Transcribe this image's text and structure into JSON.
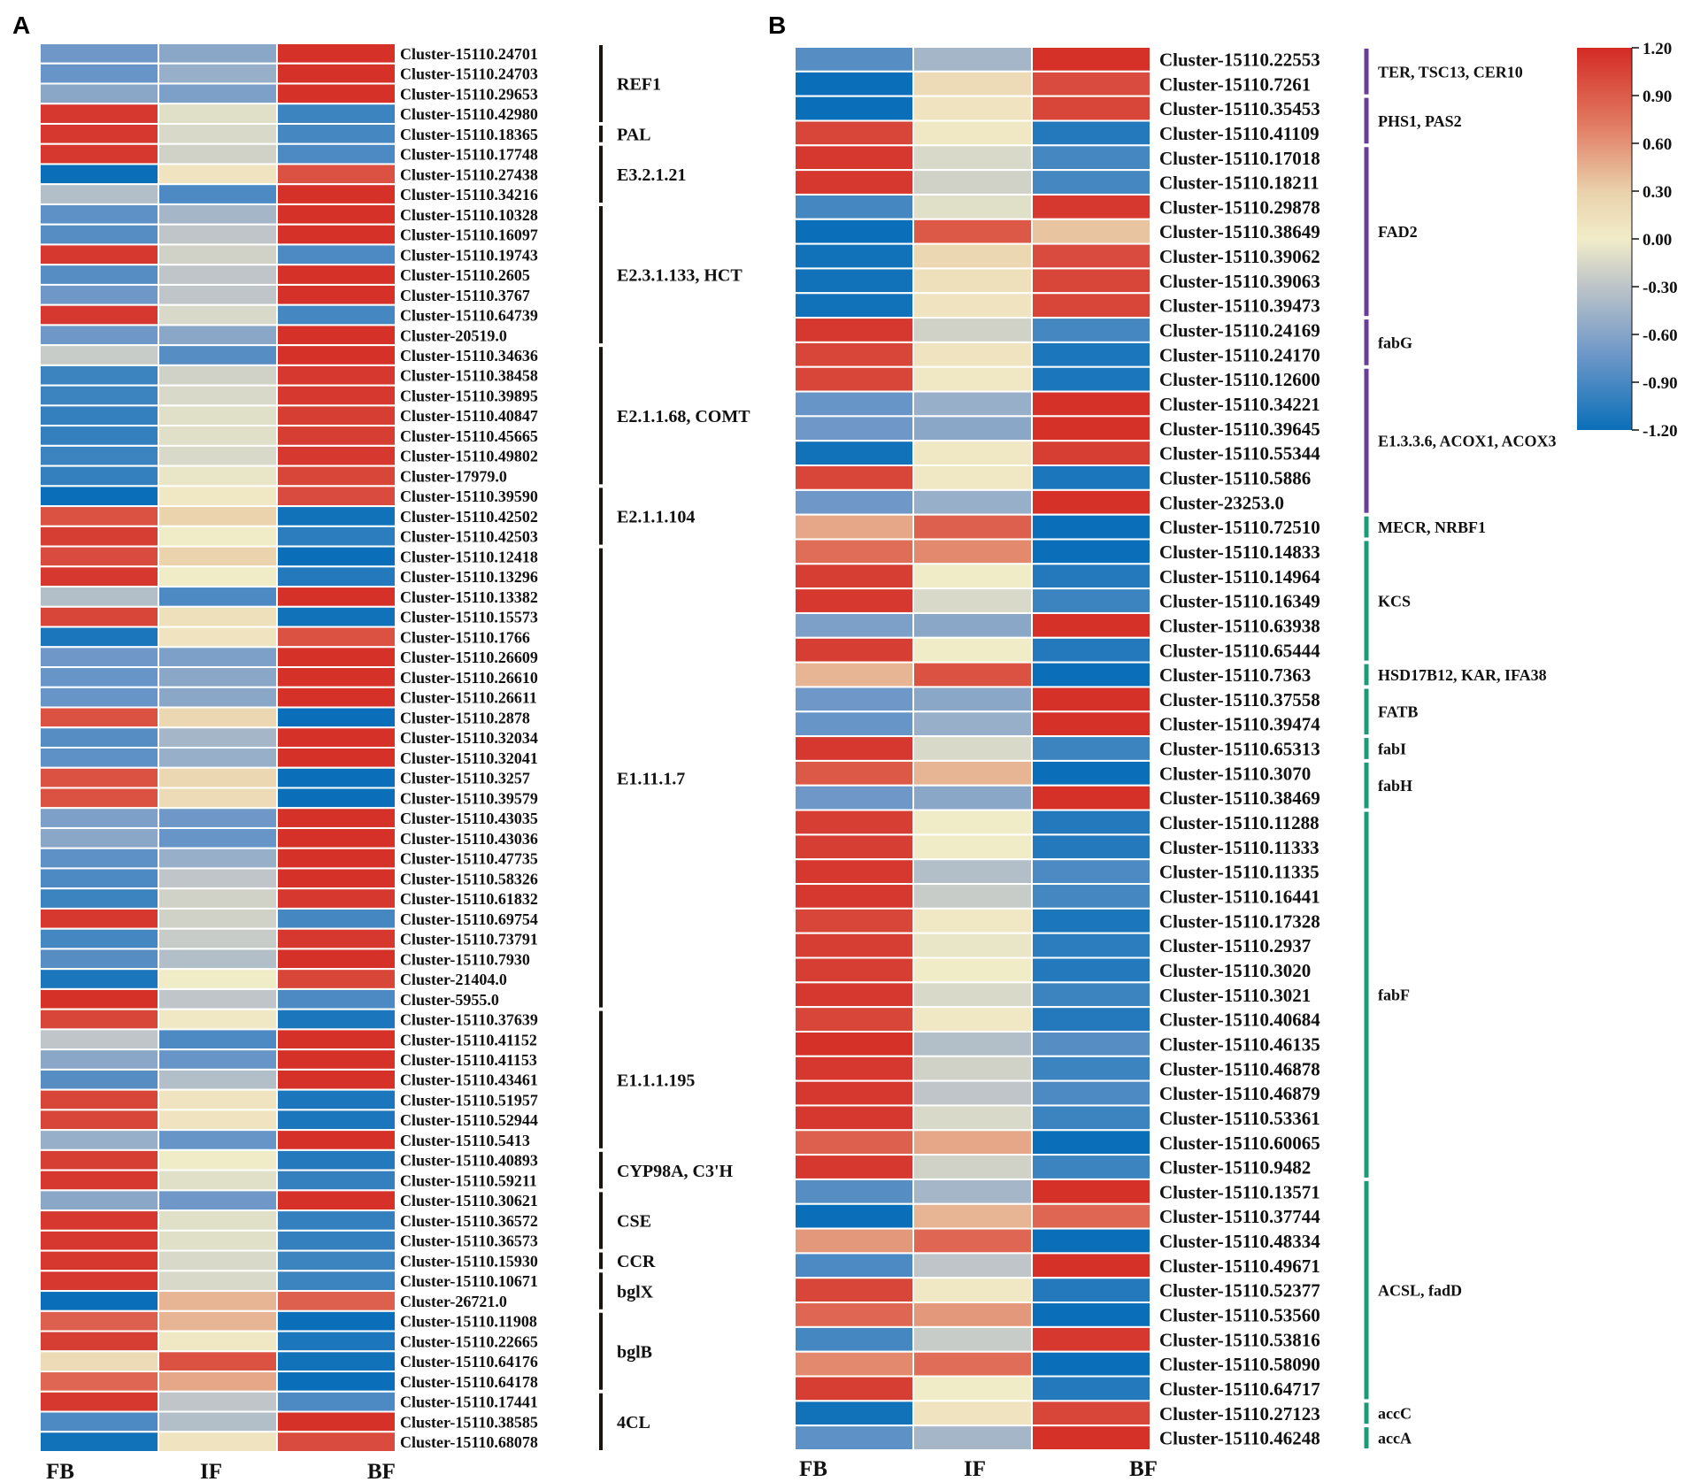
{
  "chart_data": [
    {
      "type": "heatmap",
      "panel": "A",
      "columns": [
        "FB",
        "IF",
        "BF"
      ],
      "rows": [
        "Cluster-15110.24701",
        "Cluster-15110.24703",
        "Cluster-15110.29653",
        "Cluster-15110.42980",
        "Cluster-15110.18365",
        "Cluster-15110.17748",
        "Cluster-15110.27438",
        "Cluster-15110.34216",
        "Cluster-15110.10328",
        "Cluster-15110.16097",
        "Cluster-15110.19743",
        "Cluster-15110.2605",
        "Cluster-15110.3767",
        "Cluster-15110.64739",
        "Cluster-20519.0",
        "Cluster-15110.34636",
        "Cluster-15110.38458",
        "Cluster-15110.39895",
        "Cluster-15110.40847",
        "Cluster-15110.45665",
        "Cluster-15110.49802",
        "Cluster-17979.0",
        "Cluster-15110.39590",
        "Cluster-15110.42502",
        "Cluster-15110.42503",
        "Cluster-15110.12418",
        "Cluster-15110.13296",
        "Cluster-15110.13382",
        "Cluster-15110.15573",
        "Cluster-15110.1766",
        "Cluster-15110.26609",
        "Cluster-15110.26610",
        "Cluster-15110.26611",
        "Cluster-15110.2878",
        "Cluster-15110.32034",
        "Cluster-15110.32041",
        "Cluster-15110.3257",
        "Cluster-15110.39579",
        "Cluster-15110.43035",
        "Cluster-15110.43036",
        "Cluster-15110.47735",
        "Cluster-15110.58326",
        "Cluster-15110.61832",
        "Cluster-15110.69754",
        "Cluster-15110.73791",
        "Cluster-15110.7930",
        "Cluster-21404.0",
        "Cluster-5955.0",
        "Cluster-15110.37639",
        "Cluster-15110.41152",
        "Cluster-15110.41153",
        "Cluster-15110.43461",
        "Cluster-15110.51957",
        "Cluster-15110.52944",
        "Cluster-15110.5413",
        "Cluster-15110.40893",
        "Cluster-15110.59211",
        "Cluster-15110.30621",
        "Cluster-15110.36572",
        "Cluster-15110.36573",
        "Cluster-15110.15930",
        "Cluster-15110.10671",
        "Cluster-26721.0",
        "Cluster-15110.11908",
        "Cluster-15110.22665",
        "Cluster-15110.64176",
        "Cluster-15110.64178",
        "Cluster-15110.17441",
        "Cluster-15110.38585",
        "Cluster-15110.68078"
      ],
      "values": [
        [
          -0.6,
          -0.5,
          1.15
        ],
        [
          -0.65,
          -0.45,
          1.15
        ],
        [
          -0.5,
          -0.55,
          1.15
        ],
        [
          1.1,
          -0.1,
          -0.9
        ],
        [
          1.1,
          -0.15,
          -0.85
        ],
        [
          1.1,
          -0.2,
          -0.8
        ],
        [
          -1.2,
          0.1,
          0.9
        ],
        [
          -0.35,
          -0.8,
          1.15
        ],
        [
          -0.7,
          -0.4,
          1.15
        ],
        [
          -0.75,
          -0.3,
          1.15
        ],
        [
          1.1,
          -0.2,
          -0.8
        ],
        [
          -0.75,
          -0.3,
          1.15
        ],
        [
          -0.6,
          -0.3,
          1.15
        ],
        [
          1.1,
          -0.15,
          -0.85
        ],
        [
          -0.6,
          -0.5,
          1.15
        ],
        [
          -0.25,
          -0.75,
          1.15
        ],
        [
          -0.9,
          -0.2,
          1.1
        ],
        [
          -0.9,
          -0.15,
          1.1
        ],
        [
          -0.95,
          -0.1,
          1.05
        ],
        [
          -0.95,
          -0.1,
          1.05
        ],
        [
          -0.9,
          -0.15,
          1.1
        ],
        [
          -0.95,
          -0.05,
          1.0
        ],
        [
          -1.2,
          0.05,
          0.95
        ],
        [
          0.9,
          0.3,
          -1.15
        ],
        [
          1.05,
          0.0,
          -1.0
        ],
        [
          0.95,
          0.3,
          -1.2
        ],
        [
          1.1,
          0.0,
          -1.05
        ],
        [
          -0.35,
          -0.8,
          1.15
        ],
        [
          1.0,
          0.15,
          -1.15
        ],
        [
          -1.1,
          0.1,
          0.9
        ],
        [
          -0.6,
          -0.55,
          1.15
        ],
        [
          -0.65,
          -0.5,
          1.15
        ],
        [
          -0.65,
          -0.5,
          1.15
        ],
        [
          0.9,
          0.25,
          -1.2
        ],
        [
          -0.75,
          -0.4,
          1.15
        ],
        [
          -0.7,
          -0.45,
          1.15
        ],
        [
          0.9,
          0.25,
          -1.2
        ],
        [
          0.9,
          0.2,
          -1.2
        ],
        [
          -0.55,
          -0.6,
          1.15
        ],
        [
          -0.5,
          -0.65,
          1.15
        ],
        [
          -0.7,
          -0.45,
          1.15
        ],
        [
          -0.8,
          -0.3,
          1.15
        ],
        [
          -0.9,
          -0.2,
          1.1
        ],
        [
          1.1,
          -0.2,
          -0.85
        ],
        [
          -0.85,
          -0.25,
          1.1
        ],
        [
          -0.75,
          -0.35,
          1.15
        ],
        [
          -1.1,
          0.0,
          1.0
        ],
        [
          1.15,
          -0.3,
          -0.8
        ],
        [
          1.0,
          0.05,
          -1.1
        ],
        [
          -0.3,
          -0.8,
          1.15
        ],
        [
          -0.5,
          -0.65,
          1.15
        ],
        [
          -0.75,
          -0.35,
          1.15
        ],
        [
          1.0,
          0.1,
          -1.1
        ],
        [
          1.0,
          0.1,
          -1.1
        ],
        [
          -0.45,
          -0.65,
          1.15
        ],
        [
          1.05,
          0.0,
          -1.05
        ],
        [
          1.1,
          -0.1,
          -0.95
        ],
        [
          -0.5,
          -0.6,
          1.15
        ],
        [
          1.1,
          -0.1,
          -0.95
        ],
        [
          1.1,
          -0.1,
          -0.95
        ],
        [
          1.1,
          -0.15,
          -0.9
        ],
        [
          1.1,
          -0.15,
          -0.9
        ],
        [
          -1.2,
          0.4,
          0.8
        ],
        [
          0.8,
          0.4,
          -1.2
        ],
        [
          1.05,
          0.05,
          -1.1
        ],
        [
          0.2,
          0.9,
          -1.15
        ],
        [
          0.75,
          0.45,
          -1.2
        ],
        [
          1.1,
          -0.3,
          -0.8
        ],
        [
          -0.8,
          -0.35,
          1.15
        ],
        [
          -1.15,
          0.1,
          0.95
        ]
      ],
      "groups": [
        {
          "label": "REF1",
          "start": 0,
          "end": 3
        },
        {
          "label": "PAL",
          "start": 4,
          "end": 4
        },
        {
          "label": "E3.2.1.21",
          "start": 5,
          "end": 7
        },
        {
          "label": "E2.3.1.133, HCT",
          "start": 8,
          "end": 14
        },
        {
          "label": "E2.1.1.68, COMT",
          "start": 15,
          "end": 21
        },
        {
          "label": "E2.1.1.104",
          "start": 22,
          "end": 24
        },
        {
          "label": "E1.11.1.7",
          "start": 25,
          "end": 47
        },
        {
          "label": "E1.1.1.195",
          "start": 48,
          "end": 54
        },
        {
          "label": "CYP98A, C3'H",
          "start": 55,
          "end": 56
        },
        {
          "label": "CSE",
          "start": 57,
          "end": 59
        },
        {
          "label": "CCR",
          "start": 60,
          "end": 60
        },
        {
          "label": "bglX",
          "start": 61,
          "end": 62
        },
        {
          "label": "bglB",
          "start": 63,
          "end": 66
        },
        {
          "label": "4CL",
          "start": 67,
          "end": 69
        }
      ],
      "group_color": "#1a1410"
    },
    {
      "type": "heatmap",
      "panel": "B",
      "columns": [
        "FB",
        "IF",
        "BF"
      ],
      "rows": [
        "Cluster-15110.22553",
        "Cluster-15110.7261",
        "Cluster-15110.35453",
        "Cluster-15110.41109",
        "Cluster-15110.17018",
        "Cluster-15110.18211",
        "Cluster-15110.29878",
        "Cluster-15110.38649",
        "Cluster-15110.39062",
        "Cluster-15110.39063",
        "Cluster-15110.39473",
        "Cluster-15110.24169",
        "Cluster-15110.24170",
        "Cluster-15110.12600",
        "Cluster-15110.34221",
        "Cluster-15110.39645",
        "Cluster-15110.55344",
        "Cluster-15110.5886",
        "Cluster-23253.0",
        "Cluster-15110.72510",
        "Cluster-15110.14833",
        "Cluster-15110.14964",
        "Cluster-15110.16349",
        "Cluster-15110.63938",
        "Cluster-15110.65444",
        "Cluster-15110.7363",
        "Cluster-15110.37558",
        "Cluster-15110.39474",
        "Cluster-15110.65313",
        "Cluster-15110.3070",
        "Cluster-15110.38469",
        "Cluster-15110.11288",
        "Cluster-15110.11333",
        "Cluster-15110.11335",
        "Cluster-15110.16441",
        "Cluster-15110.17328",
        "Cluster-15110.2937",
        "Cluster-15110.3020",
        "Cluster-15110.3021",
        "Cluster-15110.40684",
        "Cluster-15110.46135",
        "Cluster-15110.46878",
        "Cluster-15110.46879",
        "Cluster-15110.53361",
        "Cluster-15110.60065",
        "Cluster-15110.9482",
        "Cluster-15110.13571",
        "Cluster-15110.37744",
        "Cluster-15110.48334",
        "Cluster-15110.49671",
        "Cluster-15110.52377",
        "Cluster-15110.53560",
        "Cluster-15110.53816",
        "Cluster-15110.58090",
        "Cluster-15110.64717",
        "Cluster-15110.27123",
        "Cluster-15110.46248"
      ],
      "values": [
        [
          -0.75,
          -0.4,
          1.15
        ],
        [
          -1.2,
          0.2,
          0.95
        ],
        [
          -1.2,
          0.1,
          1.0
        ],
        [
          1.0,
          0.05,
          -1.05
        ],
        [
          1.1,
          -0.15,
          -0.85
        ],
        [
          1.1,
          -0.2,
          -0.85
        ],
        [
          -0.85,
          -0.1,
          1.1
        ],
        [
          -1.2,
          0.85,
          0.35
        ],
        [
          -1.15,
          0.25,
          0.95
        ],
        [
          -1.15,
          0.15,
          1.0
        ],
        [
          -1.15,
          0.1,
          1.0
        ],
        [
          1.1,
          -0.2,
          -0.85
        ],
        [
          1.0,
          0.1,
          -1.1
        ],
        [
          1.0,
          0.05,
          -1.1
        ],
        [
          -0.65,
          -0.45,
          1.15
        ],
        [
          -0.6,
          -0.5,
          1.15
        ],
        [
          -1.15,
          0.05,
          1.05
        ],
        [
          1.0,
          0.05,
          -1.1
        ],
        [
          -0.6,
          -0.45,
          1.15
        ],
        [
          0.45,
          0.8,
          -1.2
        ],
        [
          0.7,
          0.55,
          -1.2
        ],
        [
          1.05,
          0.0,
          -1.05
        ],
        [
          1.1,
          -0.15,
          -0.9
        ],
        [
          -0.55,
          -0.5,
          1.15
        ],
        [
          1.05,
          0.0,
          -1.05
        ],
        [
          0.4,
          0.9,
          -1.2
        ],
        [
          -0.6,
          -0.5,
          1.15
        ],
        [
          -0.65,
          -0.45,
          1.15
        ],
        [
          1.1,
          -0.15,
          -0.9
        ],
        [
          0.85,
          0.4,
          -1.2
        ],
        [
          -0.6,
          -0.5,
          1.15
        ],
        [
          1.05,
          0.0,
          -1.05
        ],
        [
          1.05,
          0.0,
          -1.05
        ],
        [
          1.1,
          -0.35,
          -0.8
        ],
        [
          1.1,
          -0.25,
          -0.85
        ],
        [
          1.0,
          0.05,
          -1.1
        ],
        [
          1.05,
          -0.05,
          -1.0
        ],
        [
          1.05,
          0.0,
          -1.05
        ],
        [
          1.1,
          -0.15,
          -0.9
        ],
        [
          1.0,
          0.05,
          -1.05
        ],
        [
          1.15,
          -0.35,
          -0.75
        ],
        [
          1.1,
          -0.2,
          -0.9
        ],
        [
          1.1,
          -0.3,
          -0.8
        ],
        [
          1.1,
          -0.15,
          -0.9
        ],
        [
          0.8,
          0.45,
          -1.2
        ],
        [
          1.1,
          -0.2,
          -0.9
        ],
        [
          -0.75,
          -0.4,
          1.15
        ],
        [
          -1.2,
          0.4,
          0.75
        ],
        [
          0.5,
          0.75,
          -1.2
        ],
        [
          -0.8,
          -0.3,
          1.15
        ],
        [
          1.0,
          0.05,
          -1.05
        ],
        [
          0.75,
          0.5,
          -1.2
        ],
        [
          -0.85,
          -0.25,
          1.1
        ],
        [
          0.55,
          0.7,
          -1.2
        ],
        [
          1.05,
          0.0,
          -1.05
        ],
        [
          -1.15,
          0.1,
          1.0
        ],
        [
          -0.7,
          -0.4,
          1.15
        ]
      ],
      "groups": [
        {
          "label": "TER, TSC13, CER10",
          "start": 0,
          "end": 1,
          "color": "#6a3d9a"
        },
        {
          "label": "PHS1, PAS2",
          "start": 2,
          "end": 3,
          "color": "#6a3d9a"
        },
        {
          "label": "FAD2",
          "start": 4,
          "end": 10,
          "color": "#6a3d9a"
        },
        {
          "label": "fabG",
          "start": 11,
          "end": 12,
          "color": "#6a3d9a"
        },
        {
          "label": "E1.3.3.6, ACOX1, ACOX3",
          "start": 13,
          "end": 18,
          "color": "#6a3d9a"
        },
        {
          "label": "MECR, NRBF1",
          "start": 19,
          "end": 19,
          "color": "#1a9b76"
        },
        {
          "label": "KCS",
          "start": 20,
          "end": 24,
          "color": "#1a9b76"
        },
        {
          "label": "HSD17B12, KAR, IFA38",
          "start": 25,
          "end": 25,
          "color": "#1a9b76"
        },
        {
          "label": "FATB",
          "start": 26,
          "end": 27,
          "color": "#1a9b76"
        },
        {
          "label": "fabI",
          "start": 28,
          "end": 28,
          "color": "#1a9b76"
        },
        {
          "label": "fabH",
          "start": 29,
          "end": 30,
          "color": "#1a9b76"
        },
        {
          "label": "fabF",
          "start": 31,
          "end": 45,
          "color": "#1a9b76"
        },
        {
          "label": "ACSL, fadD",
          "start": 46,
          "end": 54,
          "color": "#1a9b76"
        },
        {
          "label": "accC",
          "start": 55,
          "end": 55,
          "color": "#1a9b76"
        },
        {
          "label": "accA",
          "start": 56,
          "end": 56,
          "color": "#1a9b76"
        }
      ],
      "colorbar": {
        "min": -1.2,
        "max": 1.2,
        "ticks": [
          "1.20",
          "0.90",
          "0.60",
          "0.30",
          "0.00",
          "-0.30",
          "-0.60",
          "-0.90",
          "-1.20"
        ],
        "colors": {
          "high": "#d73027",
          "mid": "#f1ecc8",
          "low": "#0a6fb8"
        }
      }
    }
  ],
  "panels": {
    "a_letter": "A",
    "b_letter": "B"
  }
}
